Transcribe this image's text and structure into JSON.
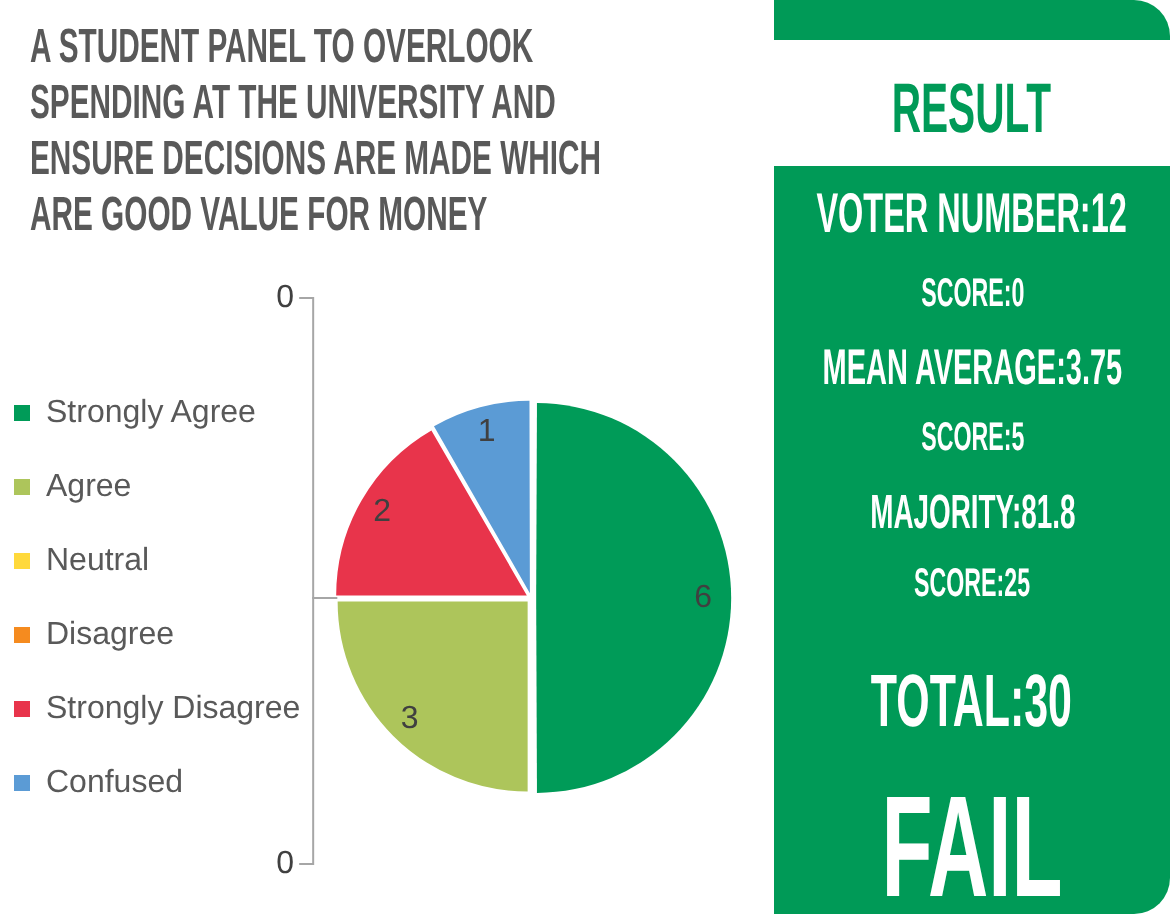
{
  "chart_data": [
    {
      "type": "pie",
      "title": "A STUDENT PANEL TO OVERLOOK SPENDING AT THE UNIVERSITY AND ENSURE DECISIONS ARE MADE WHICH ARE GOOD VALUE FOR MONEY",
      "categories": [
        "Strongly Agree",
        "Agree",
        "Neutral",
        "Disagree",
        "Strongly Disagree",
        "Confused"
      ],
      "values": [
        6,
        3,
        0,
        0,
        2,
        1
      ],
      "value_labels": [
        "6",
        "3",
        "0",
        "0",
        "2",
        "1"
      ],
      "colors": [
        "#009b58",
        "#adc55b",
        "#ffd93b",
        "#f58b1f",
        "#e8344b",
        "#5b9bd5"
      ],
      "legend": "left"
    },
    {
      "type": "other",
      "title": "RESULT",
      "annotations": [
        "VOTER NUMBER:12",
        "SCORE:0",
        "MEAN AVERAGE:3.75",
        "SCORE:5",
        "MAJORITY:81.8",
        "SCORE:25",
        "TOTAL:30",
        "FAIL"
      ]
    }
  ]
}
